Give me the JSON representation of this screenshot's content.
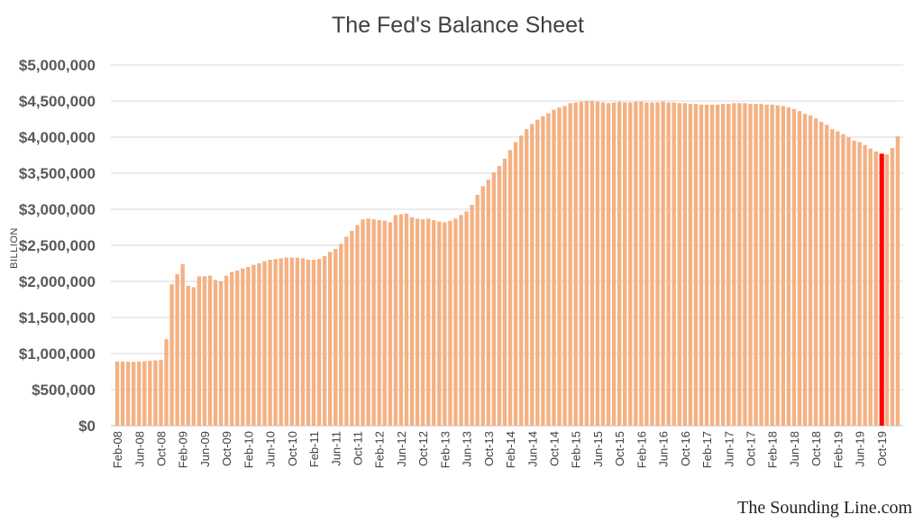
{
  "chart_data": {
    "type": "bar",
    "title": "The Fed's Balance Sheet",
    "ylabel": "BILLION",
    "xlabel": "",
    "ylim": [
      0,
      5000000
    ],
    "grid": true,
    "y_ticks": [
      "$0",
      "$500,000",
      "$1,000,000",
      "$1,500,000",
      "$2,000,000",
      "$2,500,000",
      "$3,000,000",
      "$3,500,000",
      "$4,000,000",
      "$4,500,000",
      "$5,000,000"
    ],
    "x_ticks": [
      "Feb-08",
      "Jun-08",
      "Oct-08",
      "Feb-09",
      "Jun-09",
      "Oct-09",
      "Feb-10",
      "Jun-10",
      "Oct-10",
      "Feb-11",
      "Jun-11",
      "Oct-11",
      "Feb-12",
      "Jun-12",
      "Oct-12",
      "Feb-13",
      "Jun-13",
      "Oct-13",
      "Feb-14",
      "Jun-14",
      "Oct-14",
      "Feb-15",
      "Jun-15",
      "Oct-15",
      "Feb-16",
      "Jun-16",
      "Oct-16",
      "Feb-17",
      "Jun-17",
      "Oct-17",
      "Feb-18",
      "Jun-18",
      "Oct-18",
      "Feb-19",
      "Jun-19",
      "Oct-19"
    ],
    "bar_color": "#f4b183",
    "highlight_color": "#ff0000",
    "highlight_index": 140,
    "values": [
      890000,
      890000,
      885000,
      885000,
      890000,
      895000,
      900000,
      905000,
      910000,
      1200000,
      1960000,
      2100000,
      2240000,
      1940000,
      1920000,
      2070000,
      2070000,
      2080000,
      2020000,
      2000000,
      2080000,
      2130000,
      2150000,
      2180000,
      2200000,
      2230000,
      2250000,
      2280000,
      2300000,
      2310000,
      2320000,
      2330000,
      2330000,
      2330000,
      2320000,
      2300000,
      2300000,
      2310000,
      2350000,
      2410000,
      2450000,
      2520000,
      2620000,
      2700000,
      2780000,
      2860000,
      2870000,
      2860000,
      2850000,
      2840000,
      2820000,
      2920000,
      2930000,
      2940000,
      2890000,
      2870000,
      2860000,
      2870000,
      2850000,
      2830000,
      2820000,
      2840000,
      2870000,
      2920000,
      2970000,
      3060000,
      3200000,
      3320000,
      3410000,
      3510000,
      3600000,
      3700000,
      3820000,
      3930000,
      4020000,
      4110000,
      4180000,
      4240000,
      4290000,
      4330000,
      4380000,
      4410000,
      4430000,
      4470000,
      4480000,
      4490000,
      4500000,
      4500000,
      4490000,
      4480000,
      4470000,
      4480000,
      4490000,
      4480000,
      4480000,
      4490000,
      4490000,
      4480000,
      4480000,
      4480000,
      4490000,
      4480000,
      4480000,
      4470000,
      4470000,
      4460000,
      4460000,
      4450000,
      4450000,
      4450000,
      4450000,
      4460000,
      4460000,
      4470000,
      4470000,
      4470000,
      4460000,
      4460000,
      4460000,
      4450000,
      4450000,
      4440000,
      4430000,
      4410000,
      4390000,
      4360000,
      4320000,
      4300000,
      4260000,
      4210000,
      4170000,
      4110000,
      4080000,
      4040000,
      4000000,
      3950000,
      3930000,
      3890000,
      3840000,
      3800000,
      3770000,
      3760000,
      3850000,
      4010000
    ]
  },
  "watermark": "The Sounding Line.com"
}
